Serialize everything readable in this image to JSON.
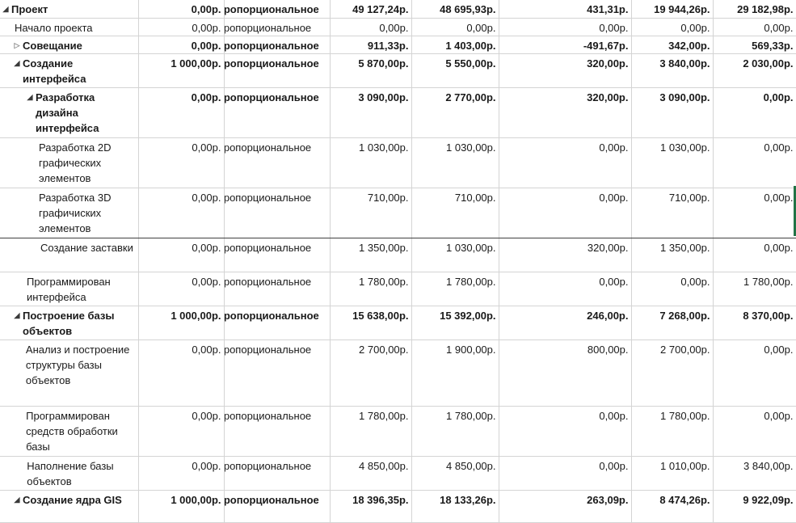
{
  "rows": [
    {
      "name": "Проект",
      "bold": true,
      "toggle": "expanded",
      "cells": [
        "0,00р.",
        "Пропорциональное",
        "49 127,24р.",
        "48 695,93р.",
        "431,31р.",
        "19 944,26р.",
        "29 182,98р."
      ]
    },
    {
      "name": "Начало проекта",
      "bold": false,
      "toggle": "none",
      "cells": [
        "0,00р.",
        "Пропорциональное",
        "0,00р.",
        "0,00р.",
        "0,00р.",
        "0,00р.",
        "0,00р."
      ]
    },
    {
      "name": "Совещание",
      "bold": true,
      "toggle": "collapsed",
      "cells": [
        "0,00р.",
        "Пропорциональное",
        "911,33р.",
        "1 403,00р.",
        "-491,67р.",
        "342,00р.",
        "569,33р."
      ]
    },
    {
      "name": "Создание интерфейса",
      "bold": true,
      "toggle": "expanded",
      "cells": [
        "1 000,00р.",
        "Пропорциональное",
        "5 870,00р.",
        "5 550,00р.",
        "320,00р.",
        "3 840,00р.",
        "2 030,00р."
      ]
    },
    {
      "name": "Разработка дизайна интерфейса",
      "bold": true,
      "toggle": "expanded",
      "cells": [
        "0,00р.",
        "Пропорциональное",
        "3 090,00р.",
        "2 770,00р.",
        "320,00р.",
        "3 090,00р.",
        "0,00р."
      ]
    },
    {
      "name": "Разработка 2D графических элементов",
      "bold": false,
      "toggle": "none",
      "cells": [
        "0,00р.",
        "Пропорциональное",
        "1 030,00р.",
        "1 030,00р.",
        "0,00р.",
        "1 030,00р.",
        "0,00р."
      ]
    },
    {
      "name": "Разработка 3D графичиских элементов",
      "bold": false,
      "toggle": "none",
      "cells": [
        "0,00р.",
        "Пропорциональное",
        "710,00р.",
        "710,00р.",
        "0,00р.",
        "710,00р.",
        "0,00р."
      ]
    },
    {
      "name": "Создание заставки",
      "bold": false,
      "toggle": "none",
      "cells": [
        "0,00р.",
        "Пропорциональное",
        "1 350,00р.",
        "1 030,00р.",
        "320,00р.",
        "1 350,00р.",
        "0,00р."
      ]
    },
    {
      "name": "Программирован интерфейса",
      "bold": false,
      "toggle": "none",
      "cells": [
        "0,00р.",
        "Пропорциональное",
        "1 780,00р.",
        "1 780,00р.",
        "0,00р.",
        "0,00р.",
        "1 780,00р."
      ]
    },
    {
      "name": "Построение базы объектов",
      "bold": true,
      "toggle": "expanded",
      "cells": [
        "1 000,00р.",
        "Пропорциональное",
        "15 638,00р.",
        "15 392,00р.",
        "246,00р.",
        "7 268,00р.",
        "8 370,00р."
      ]
    },
    {
      "name": "Анализ и построение структуры базы объектов",
      "bold": false,
      "toggle": "none",
      "cells": [
        "0,00р.",
        "Пропорциональное",
        "2 700,00р.",
        "1 900,00р.",
        "800,00р.",
        "2 700,00р.",
        "0,00р."
      ]
    },
    {
      "name": "Программирован средств обработки базы",
      "bold": false,
      "toggle": "none",
      "cells": [
        "0,00р.",
        "Пропорциональное",
        "1 780,00р.",
        "1 780,00р.",
        "0,00р.",
        "1 780,00р.",
        "0,00р."
      ]
    },
    {
      "name": "Наполнение базы объектов",
      "bold": false,
      "toggle": "none",
      "cells": [
        "0,00р.",
        "Пропорциональное",
        "4 850,00р.",
        "4 850,00р.",
        "0,00р.",
        "1 010,00р.",
        "3 840,00р."
      ]
    },
    {
      "name": "Создание ядра GIS",
      "bold": true,
      "toggle": "expanded",
      "cells": [
        "1 000,00р.",
        "Пропорциональное",
        "18 396,35р.",
        "18 133,26р.",
        "263,09р.",
        "8 474,26р.",
        "9 922,09р."
      ]
    }
  ]
}
